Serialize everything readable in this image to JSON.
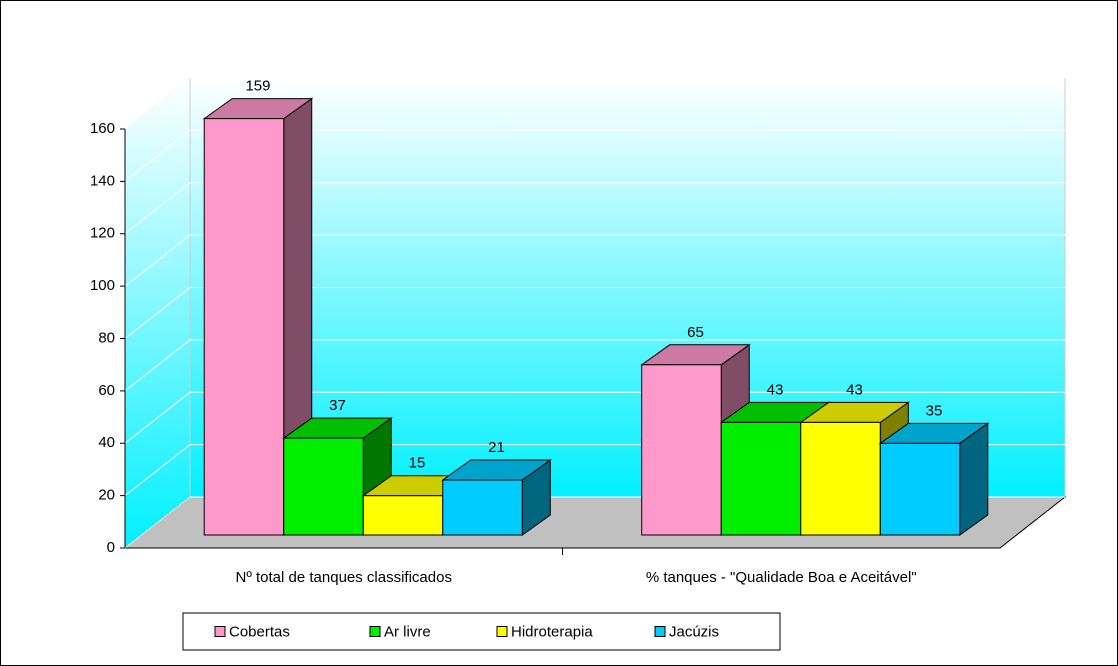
{
  "chart_data": {
    "type": "bar3d",
    "categories": [
      "Nº total de tanques classificados",
      "% tanques - \"Qualidade Boa e Aceitável\""
    ],
    "series": [
      {
        "name": "Cobertas",
        "color": "#ff99cc",
        "values": [
          159,
          65
        ]
      },
      {
        "name": "Ar livre",
        "color": "#00ee00",
        "values": [
          37,
          43
        ]
      },
      {
        "name": "Hidroterapia",
        "color": "#ffff00",
        "values": [
          15,
          43
        ]
      },
      {
        "name": "Jacúzis",
        "color": "#00ccff",
        "values": [
          21,
          35
        ]
      }
    ],
    "ylim": [
      0,
      160
    ],
    "yticks": [
      0,
      20,
      40,
      60,
      80,
      100,
      120,
      140,
      160
    ],
    "grid": true,
    "legend": "bottom"
  }
}
